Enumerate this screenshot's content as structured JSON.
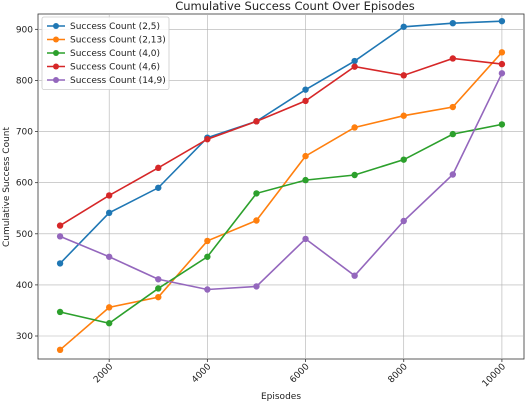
{
  "chart_data": {
    "type": "line",
    "title": "Cumulative Success Count Over Episodes",
    "xlabel": "Episodes",
    "ylabel": "Cumulative Success Count",
    "x": [
      1000,
      2000,
      3000,
      4000,
      5000,
      6000,
      7000,
      8000,
      9000,
      10000
    ],
    "xlim": [
      550,
      10450
    ],
    "ylim": [
      255,
      930
    ],
    "xticks": [
      2000,
      4000,
      6000,
      8000,
      10000
    ],
    "yticks": [
      300,
      400,
      500,
      600,
      700,
      800,
      900
    ],
    "grid": true,
    "legend_position": "top-left",
    "series": [
      {
        "name": "Success Count (2,5)",
        "color": "#1f77b4",
        "values": [
          442,
          541,
          590,
          688,
          720,
          782,
          838,
          905,
          912,
          916
        ]
      },
      {
        "name": "Success Count (2,13)",
        "color": "#ff7f0e",
        "values": [
          273,
          356,
          376,
          486,
          526,
          652,
          708,
          731,
          748,
          855
        ]
      },
      {
        "name": "Success Count (4,0)",
        "color": "#2ca02c",
        "values": [
          347,
          325,
          393,
          455,
          579,
          605,
          615,
          645,
          695,
          714
        ]
      },
      {
        "name": "Success Count (4,6)",
        "color": "#d62728",
        "values": [
          516,
          575,
          629,
          685,
          720,
          760,
          827,
          810,
          843,
          832
        ]
      },
      {
        "name": "Success Count (14,9)",
        "color": "#9467bd",
        "values": [
          495,
          455,
          411,
          391,
          397,
          490,
          418,
          525,
          616,
          814
        ]
      }
    ]
  }
}
